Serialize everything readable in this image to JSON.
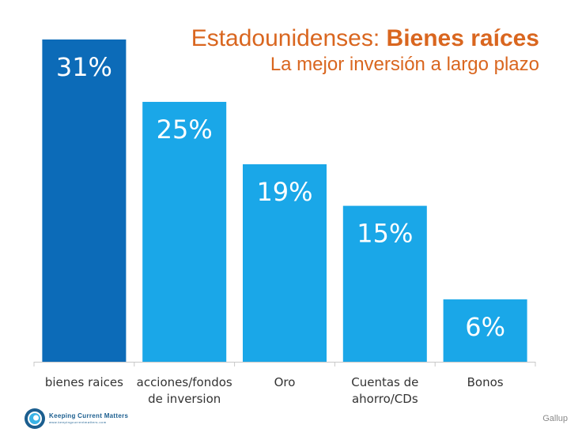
{
  "title": {
    "part1": "Estadounidenses: ",
    "part2": "Bienes raíces",
    "subtitle": "La mejor inversión a largo plazo"
  },
  "source": "Gallup",
  "brand": {
    "name": "Keeping Current Matters",
    "url": "www.keepingcurrentmatters.com"
  },
  "colors": {
    "highlight_bar": "#0c6bb8",
    "bar": "#1aa7e8",
    "title": "#d9661f"
  },
  "chart_data": {
    "type": "bar",
    "categories": [
      [
        "bienes raices"
      ],
      [
        "acciones/fondos",
        "de inversion"
      ],
      [
        "Oro"
      ],
      [
        "Cuentas de",
        "ahorro/CDs"
      ],
      [
        "Bonos"
      ]
    ],
    "values": [
      31,
      25,
      19,
      15,
      6
    ],
    "data_labels": [
      "31%",
      "25%",
      "19%",
      "15%",
      "6%"
    ],
    "highlight_index": 0,
    "ylim": [
      0,
      31
    ]
  }
}
